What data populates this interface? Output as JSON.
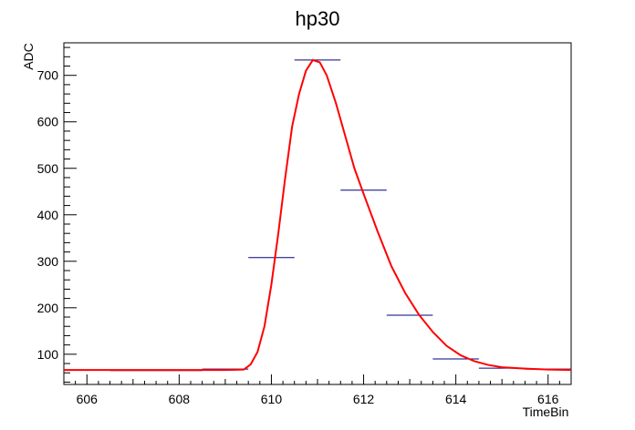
{
  "chart_data": {
    "type": "line",
    "title": "hp30",
    "xlabel": "TimeBin",
    "ylabel": "ADC",
    "xlim": [
      605.5,
      616.5
    ],
    "ylim": [
      35,
      770
    ],
    "x_ticks": [
      606,
      608,
      610,
      612,
      614,
      616
    ],
    "y_ticks": [
      100,
      200,
      300,
      400,
      500,
      600,
      700
    ],
    "grid": false,
    "legend": "none",
    "series": [
      {
        "type": "histogram",
        "color": "#000080",
        "bin_width": 1,
        "bins": [
          {
            "x": 606,
            "y": 66
          },
          {
            "x": 607,
            "y": 65
          },
          {
            "x": 608,
            "y": 65
          },
          {
            "x": 609,
            "y": 68
          },
          {
            "x": 610,
            "y": 308
          },
          {
            "x": 611,
            "y": 733
          },
          {
            "x": 612,
            "y": 453
          },
          {
            "x": 613,
            "y": 184
          },
          {
            "x": 614,
            "y": 90
          },
          {
            "x": 615,
            "y": 70
          },
          {
            "x": 616,
            "y": 68
          }
        ]
      },
      {
        "type": "fit",
        "color": "#ff0000",
        "points": [
          [
            605.5,
            66
          ],
          [
            606,
            66
          ],
          [
            607,
            66
          ],
          [
            608,
            66
          ],
          [
            609,
            66
          ],
          [
            609.4,
            67
          ],
          [
            609.55,
            78
          ],
          [
            609.7,
            105
          ],
          [
            609.85,
            160
          ],
          [
            610,
            250
          ],
          [
            610.15,
            360
          ],
          [
            610.3,
            480
          ],
          [
            610.45,
            590
          ],
          [
            610.6,
            660
          ],
          [
            610.75,
            710
          ],
          [
            610.9,
            733
          ],
          [
            611.05,
            728
          ],
          [
            611.2,
            700
          ],
          [
            611.4,
            640
          ],
          [
            611.6,
            570
          ],
          [
            611.8,
            500
          ],
          [
            612,
            445
          ],
          [
            612.3,
            365
          ],
          [
            612.6,
            290
          ],
          [
            612.9,
            232
          ],
          [
            613.2,
            185
          ],
          [
            613.5,
            148
          ],
          [
            613.8,
            118
          ],
          [
            614.1,
            98
          ],
          [
            614.4,
            85
          ],
          [
            614.7,
            77
          ],
          [
            615,
            72
          ],
          [
            615.5,
            69
          ],
          [
            616,
            67
          ],
          [
            616.5,
            66
          ]
        ]
      }
    ]
  }
}
